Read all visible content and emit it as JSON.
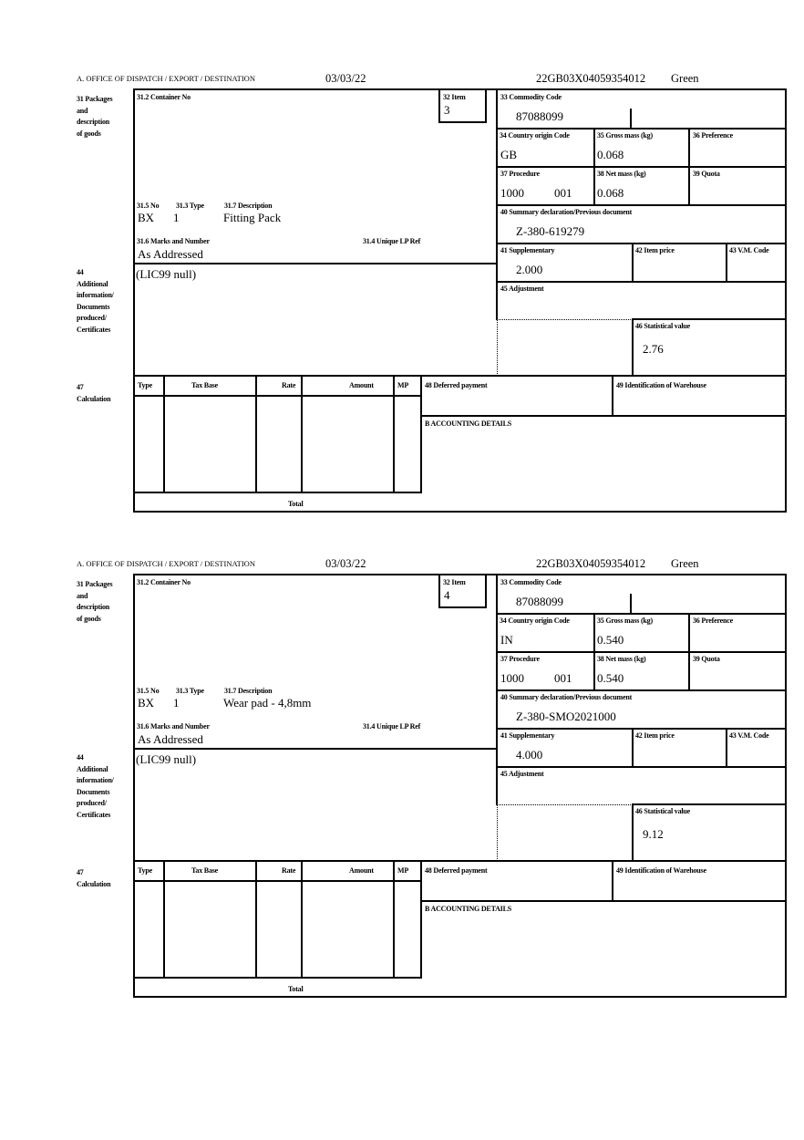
{
  "header": {
    "office_label": "A.  OFFICE OF DISPATCH / EXPORT / DESTINATION",
    "date": "03/03/22",
    "reference": "22GB03X04059354012",
    "route": "Green"
  },
  "labels": {
    "box31": "31 Packages\nand\ndescription\nof goods",
    "container_no": "31.2 Container No",
    "item": "32 Item",
    "no": "31.5 No",
    "type": "31.3 Type",
    "description": "31.7 Description",
    "marks": "31.6 Marks and Number",
    "unique_lp_ref": "31.4 Unique LP Ref",
    "box44": "44\nAdditional\ninformation/\nDocuments\nproduced/\nCertificates",
    "commodity_code": "33 Commodity Code",
    "country_origin": "34 Country origin Code",
    "gross_mass": "35 Gross mass (kg)",
    "preference": "36 Preference",
    "procedure": "37 Procedure",
    "net_mass": "38 Net mass (kg)",
    "quota": "39 Quota",
    "summary_declaration": "40 Summary declaration/Previous document",
    "supplementary": "41 Supplementary",
    "item_price": "42 Item price",
    "vm_code": "43 V.M. Code",
    "adjustment": "45 Adjustment",
    "statistical_value": "46 Statistical value",
    "box47": "47\nCalculation",
    "col_type": "Type",
    "col_tax_base": "Tax Base",
    "col_rate": "Rate",
    "col_amount": "Amount",
    "col_mp": "MP",
    "deferred_payment": "48 Deferred payment",
    "warehouse": "49 Identification of Warehouse",
    "accounting": "B ACCOUNTING DETAILS",
    "total": "Total"
  },
  "forms": [
    {
      "item": "3",
      "no": "BX",
      "type": "1",
      "description": "Fitting Pack",
      "marks": "As Addressed",
      "additional_info": "(LIC99 null)",
      "commodity_code": "87088099",
      "country_origin": "GB",
      "gross_mass": "0.068",
      "procedure": "1000",
      "procedure_extra": "001",
      "net_mass": "0.068",
      "summary_declaration": "Z-380-619279",
      "supplementary": "2.000",
      "statistical_value": "2.76"
    },
    {
      "item": "4",
      "no": "BX",
      "type": "1",
      "description": "Wear pad - 4,8mm",
      "marks": "As Addressed",
      "additional_info": "(LIC99 null)",
      "commodity_code": "87088099",
      "country_origin": "IN",
      "gross_mass": "0.540",
      "procedure": "1000",
      "procedure_extra": "001",
      "net_mass": "0.540",
      "summary_declaration": "Z-380-SMO2021000",
      "supplementary": "4.000",
      "statistical_value": "9.12"
    }
  ]
}
